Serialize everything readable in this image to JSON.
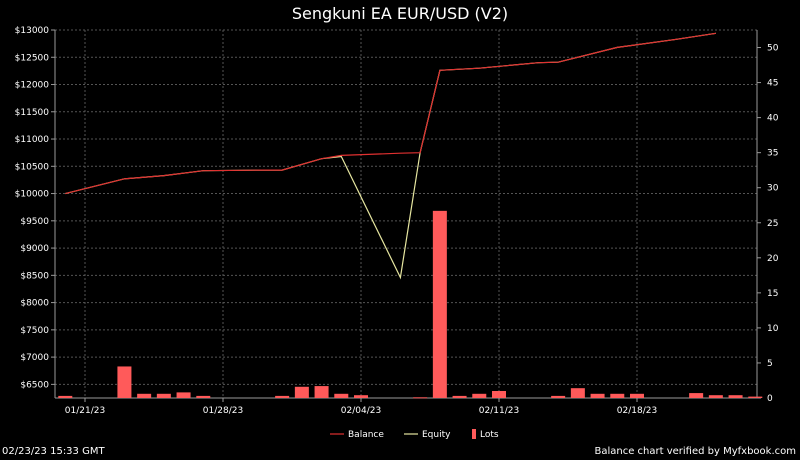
{
  "chart_data": {
    "type": "line",
    "title": "Sengkuni EA EUR/USD (V2)",
    "x_ticks": [
      "01/21/23",
      "01/28/23",
      "02/04/23",
      "02/11/23",
      "02/18/23"
    ],
    "y_left": {
      "min": 6250,
      "max": 13000,
      "ticks": [
        6500,
        7000,
        7500,
        8000,
        8500,
        9000,
        9500,
        10000,
        10500,
        11000,
        11500,
        12000,
        12500,
        13000
      ],
      "tick_labels": [
        "$6500",
        "$7000",
        "$7500",
        "$8000",
        "$8500",
        "$9000",
        "$9500",
        "$10000",
        "$10500",
        "$11000",
        "$11500",
        "$12000",
        "$12500",
        "$13000"
      ]
    },
    "y_right": {
      "min": 0,
      "max": 52.5,
      "ticks": [
        0,
        5,
        10,
        15,
        20,
        25,
        30,
        35,
        40,
        45,
        50
      ],
      "tick_labels": [
        "0",
        "5",
        "10",
        "15",
        "20",
        "25",
        "30",
        "35",
        "40",
        "45",
        "50"
      ]
    },
    "grid": true,
    "legend_position": "bottom-center",
    "colors": {
      "balance": "#e03030",
      "equity": "#e6e6a0",
      "lots": "#ff5a5a",
      "grid": "#555555",
      "axis": "#9a9a9a"
    },
    "series": [
      {
        "name": "Balance",
        "type": "line",
        "x": [
          "01/20/23",
          "01/23/23",
          "01/25/23",
          "01/27/23",
          "01/30/23",
          "01/31/23",
          "02/02/23",
          "02/03/23",
          "02/06/23",
          "02/07/23",
          "02/08/23",
          "02/10/23",
          "02/13/23",
          "02/14/23",
          "02/17/23",
          "02/20/23",
          "02/22/23"
        ],
        "values": [
          10000,
          10270,
          10330,
          10420,
          10430,
          10430,
          10640,
          10700,
          10740,
          10750,
          12260,
          12300,
          12400,
          12410,
          12680,
          12830,
          12940
        ]
      },
      {
        "name": "Equity",
        "type": "line",
        "x": [
          "01/20/23",
          "01/23/23",
          "01/25/23",
          "01/27/23",
          "01/30/23",
          "01/31/23",
          "02/02/23",
          "02/03/23",
          "02/06/23",
          "02/07/23",
          "02/08/23",
          "02/10/23",
          "02/13/23",
          "02/14/23",
          "02/17/23",
          "02/20/23",
          "02/22/23"
        ],
        "values": [
          10000,
          10270,
          10330,
          10420,
          10430,
          10430,
          10640,
          10680,
          8460,
          10750,
          12260,
          12300,
          12400,
          12410,
          12680,
          12830,
          12940
        ]
      },
      {
        "name": "Lots",
        "type": "bar",
        "axis": "right",
        "x": [
          "01/20/23",
          "01/23/23",
          "01/24/23",
          "01/25/23",
          "01/26/23",
          "01/27/23",
          "01/31/23",
          "02/01/23",
          "02/02/23",
          "02/03/23",
          "02/04/23",
          "02/07/23",
          "02/08/23",
          "02/09/23",
          "02/10/23",
          "02/11/23",
          "02/14/23",
          "02/15/23",
          "02/16/23",
          "02/17/23",
          "02/18/23",
          "02/21/23",
          "02/22/23",
          "02/23/23",
          "02/24/23"
        ],
        "values": [
          0.3,
          4.5,
          0.6,
          0.6,
          0.8,
          0.3,
          0.3,
          1.6,
          1.7,
          0.6,
          0.4,
          0.1,
          26.7,
          0.3,
          0.6,
          1.0,
          0.3,
          1.4,
          0.6,
          0.6,
          0.6,
          0.7,
          0.4,
          0.4,
          0.2
        ]
      }
    ],
    "legend": [
      {
        "label": "Balance",
        "kind": "line",
        "color": "#e03030"
      },
      {
        "label": "Equity",
        "kind": "line",
        "color": "#e6e6a0"
      },
      {
        "label": "Lots",
        "kind": "bar",
        "color": "#ff5a5a"
      }
    ]
  },
  "footer": {
    "timestamp": "02/23/23 15:33 GMT",
    "verified": "Balance chart verified by Myfxbook.com"
  }
}
